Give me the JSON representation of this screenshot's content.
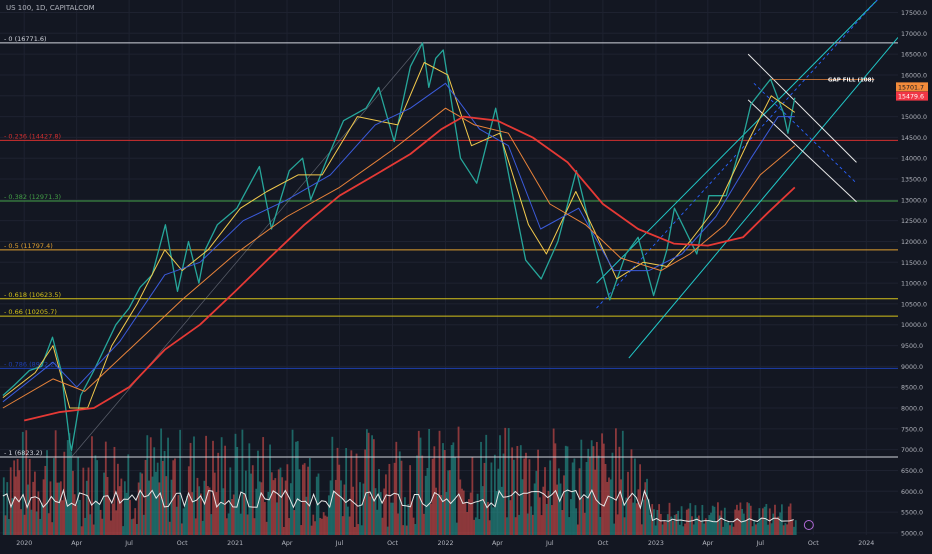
{
  "header": {
    "title": "US 100, 1D, CAPITALCOM"
  },
  "colors": {
    "background": "#131722",
    "price_up": "#26a69a",
    "price_down": "#ef5350",
    "ma_yellow": "#f2c94c",
    "ma_blue": "#3b5bdb",
    "ma_orange": "#e8833a",
    "ma_red": "#e53935",
    "channel": "#21c7c7",
    "trend_white": "#e6e6e6",
    "fib_white": "#d1d4dc",
    "fib_red": "#d32f2f",
    "fib_green": "#43a047",
    "fib_orange": "#e0a030",
    "fib_yellow": "#d4c21a",
    "fib_blue": "#1e3fb0",
    "price_tag": "#f28b3a",
    "price_tag_red": "#f23645",
    "volume_avg": "#e6e6e6"
  },
  "annotations": {
    "gap_fill_label": "GAP FILL (108)",
    "last_price_1": "15701.7",
    "last_price_2": "15479.6"
  },
  "chart_data": {
    "type": "line",
    "title": "US 100, 1D, CAPITALCOM",
    "x_axis": {
      "ticks": [
        "2020",
        "Apr",
        "Jul",
        "Oct",
        "2021",
        "Apr",
        "Jul",
        "Oct",
        "2022",
        "Apr",
        "Jul",
        "Oct",
        "2023",
        "Apr",
        "Jul",
        "Oct",
        "2024"
      ],
      "tick_dates": [
        "2020-01-01",
        "2020-04-01",
        "2020-07-01",
        "2020-10-01",
        "2021-01-01",
        "2021-04-01",
        "2021-07-01",
        "2021-10-01",
        "2022-01-01",
        "2022-04-01",
        "2022-07-01",
        "2022-10-01",
        "2023-01-01",
        "2023-04-01",
        "2023-07-01",
        "2023-10-01",
        "2024-01-01"
      ],
      "range": [
        "2019-11-20",
        "2024-02-25"
      ]
    },
    "y_axis": {
      "ticks": [
        17500,
        17000,
        16500,
        16000,
        15500,
        15000,
        14500,
        14000,
        13500,
        13000,
        12500,
        12000,
        11500,
        11000,
        10500,
        10000,
        9500,
        9000,
        8500,
        8000,
        7500,
        7000,
        6500,
        6000,
        5500,
        5000
      ],
      "tick_labels": [
        "17500.0",
        "17000.0",
        "16500.0",
        "16000.0",
        "15500.0",
        "15000.0",
        "14500.0",
        "14000.0",
        "13500.0",
        "13000.0",
        "12500.0",
        "12000.0",
        "11500.0",
        "11000.0",
        "10500.0",
        "10000.0",
        "9500.0",
        "9000.0",
        "8500.0",
        "8000.0",
        "7500.0",
        "7000.0",
        "6500.0",
        "6000.0",
        "5500.0",
        "5000.0"
      ],
      "range": [
        4950,
        17800
      ]
    },
    "fib_levels": [
      {
        "label": "0 (16771.6)",
        "value": 16771.6,
        "color": "#d1d4dc"
      },
      {
        "label": "0.236 (14427.8)",
        "value": 14427.8,
        "color": "#d32f2f"
      },
      {
        "label": "0.382 (12971.3)",
        "value": 12971.3,
        "color": "#43a047"
      },
      {
        "label": "0.5 (11797.4)",
        "value": 11797.4,
        "color": "#e0a030"
      },
      {
        "label": "0.618 (10623.5)",
        "value": 10623.5,
        "color": "#d4c21a"
      },
      {
        "label": "0.66 (10205.7)",
        "value": 10205.7,
        "color": "#d4c21a"
      },
      {
        "label": "0.786 (8952.2)",
        "value": 8952.2,
        "color": "#1e3fb0"
      },
      {
        "label": "1 (6823.2)",
        "value": 6823.2,
        "color": "#d1d4dc"
      }
    ],
    "series": [
      {
        "name": "price",
        "color": "#26a69a",
        "points": [
          [
            "2019-11-25",
            8300
          ],
          [
            "2019-12-15",
            8550
          ],
          [
            "2020-01-10",
            8900
          ],
          [
            "2020-01-31",
            9000
          ],
          [
            "2020-02-19",
            9700
          ],
          [
            "2020-03-05",
            8900
          ],
          [
            "2020-03-20",
            7200
          ],
          [
            "2020-03-23",
            6980
          ],
          [
            "2020-04-08",
            8300
          ],
          [
            "2020-05-01",
            8900
          ],
          [
            "2020-06-08",
            10000
          ],
          [
            "2020-07-01",
            10400
          ],
          [
            "2020-07-20",
            10900
          ],
          [
            "2020-08-10",
            11200
          ],
          [
            "2020-09-02",
            12400
          ],
          [
            "2020-09-23",
            10800
          ],
          [
            "2020-10-12",
            12000
          ],
          [
            "2020-10-30",
            11000
          ],
          [
            "2020-11-10",
            11800
          ],
          [
            "2020-12-01",
            12400
          ],
          [
            "2021-01-04",
            12800
          ],
          [
            "2021-02-12",
            13800
          ],
          [
            "2021-03-05",
            12300
          ],
          [
            "2021-04-05",
            13700
          ],
          [
            "2021-04-28",
            14000
          ],
          [
            "2021-05-12",
            13000
          ],
          [
            "2021-06-10",
            14000
          ],
          [
            "2021-07-08",
            14900
          ],
          [
            "2021-08-16",
            15200
          ],
          [
            "2021-09-07",
            15700
          ],
          [
            "2021-10-04",
            14400
          ],
          [
            "2021-11-01",
            16200
          ],
          [
            "2021-11-22",
            16770
          ],
          [
            "2021-12-03",
            15700
          ],
          [
            "2021-12-15",
            16400
          ],
          [
            "2021-12-28",
            16600
          ],
          [
            "2022-01-27",
            14000
          ],
          [
            "2022-02-24",
            13400
          ],
          [
            "2022-03-29",
            15200
          ],
          [
            "2022-04-25",
            13300
          ],
          [
            "2022-05-20",
            11550
          ],
          [
            "2022-06-16",
            11100
          ],
          [
            "2022-07-15",
            12000
          ],
          [
            "2022-08-16",
            13700
          ],
          [
            "2022-09-15",
            12000
          ],
          [
            "2022-10-13",
            10600
          ],
          [
            "2022-11-10",
            11700
          ],
          [
            "2022-12-01",
            12100
          ],
          [
            "2022-12-28",
            10700
          ],
          [
            "2023-01-20",
            11800
          ],
          [
            "2023-02-02",
            12800
          ],
          [
            "2023-03-13",
            11700
          ],
          [
            "2023-04-03",
            13100
          ],
          [
            "2023-05-03",
            13100
          ],
          [
            "2023-06-01",
            14500
          ],
          [
            "2023-06-15",
            15300
          ],
          [
            "2023-07-19",
            15900
          ],
          [
            "2023-08-10",
            15100
          ],
          [
            "2023-08-18",
            14600
          ],
          [
            "2023-08-30",
            15450
          ]
        ]
      },
      {
        "name": "ema_fast",
        "color": "#f2c94c",
        "points": [
          [
            "2019-11-25",
            8250
          ],
          [
            "2020-01-20",
            8850
          ],
          [
            "2020-02-20",
            9500
          ],
          [
            "2020-03-20",
            8000
          ],
          [
            "2020-04-20",
            8000
          ],
          [
            "2020-06-01",
            9500
          ],
          [
            "2020-07-15",
            10500
          ],
          [
            "2020-09-01",
            11800
          ],
          [
            "2020-10-01",
            11300
          ],
          [
            "2020-11-15",
            11800
          ],
          [
            "2021-01-10",
            12800
          ],
          [
            "2021-02-25",
            13200
          ],
          [
            "2021-04-20",
            13600
          ],
          [
            "2021-06-01",
            13600
          ],
          [
            "2021-08-01",
            15000
          ],
          [
            "2021-10-10",
            14800
          ],
          [
            "2021-11-25",
            16300
          ],
          [
            "2022-01-05",
            16000
          ],
          [
            "2022-02-15",
            14300
          ],
          [
            "2022-04-05",
            14600
          ],
          [
            "2022-05-25",
            12400
          ],
          [
            "2022-06-25",
            11700
          ],
          [
            "2022-08-15",
            13200
          ],
          [
            "2022-09-25",
            12000
          ],
          [
            "2022-10-25",
            11100
          ],
          [
            "2022-12-10",
            11500
          ],
          [
            "2023-01-20",
            11400
          ],
          [
            "2023-03-01",
            12000
          ],
          [
            "2023-04-20",
            12900
          ],
          [
            "2023-06-10",
            14400
          ],
          [
            "2023-07-20",
            15500
          ],
          [
            "2023-08-30",
            15100
          ]
        ]
      },
      {
        "name": "ema_mid",
        "color": "#3b5bdb",
        "points": [
          [
            "2019-11-25",
            8150
          ],
          [
            "2020-02-20",
            9100
          ],
          [
            "2020-04-01",
            8500
          ],
          [
            "2020-06-15",
            9600
          ],
          [
            "2020-09-01",
            11200
          ],
          [
            "2020-11-01",
            11500
          ],
          [
            "2021-01-15",
            12500
          ],
          [
            "2021-04-01",
            13000
          ],
          [
            "2021-06-15",
            13600
          ],
          [
            "2021-09-01",
            14800
          ],
          [
            "2021-11-01",
            15200
          ],
          [
            "2022-01-01",
            15800
          ],
          [
            "2022-03-01",
            14700
          ],
          [
            "2022-04-20",
            14300
          ],
          [
            "2022-06-15",
            12300
          ],
          [
            "2022-08-20",
            12800
          ],
          [
            "2022-10-20",
            11300
          ],
          [
            "2022-12-20",
            11300
          ],
          [
            "2023-02-15",
            11700
          ],
          [
            "2023-04-15",
            12600
          ],
          [
            "2023-06-15",
            14000
          ],
          [
            "2023-08-01",
            15000
          ],
          [
            "2023-08-30",
            15000
          ]
        ]
      },
      {
        "name": "ema_slow",
        "color": "#e8833a",
        "points": [
          [
            "2019-11-25",
            8000
          ],
          [
            "2020-02-20",
            8700
          ],
          [
            "2020-04-15",
            8400
          ],
          [
            "2020-07-01",
            9400
          ],
          [
            "2020-10-01",
            10600
          ],
          [
            "2021-01-01",
            11700
          ],
          [
            "2021-04-01",
            12600
          ],
          [
            "2021-07-01",
            13300
          ],
          [
            "2021-10-01",
            14200
          ],
          [
            "2022-01-01",
            15200
          ],
          [
            "2022-02-20",
            14800
          ],
          [
            "2022-04-20",
            14600
          ],
          [
            "2022-07-01",
            12900
          ],
          [
            "2022-09-01",
            12400
          ],
          [
            "2022-11-01",
            11600
          ],
          [
            "2023-01-10",
            11300
          ],
          [
            "2023-03-01",
            11700
          ],
          [
            "2023-05-01",
            12400
          ],
          [
            "2023-07-01",
            13600
          ],
          [
            "2023-08-30",
            14300
          ]
        ]
      },
      {
        "name": "sma_200",
        "color": "#e53935",
        "points": [
          [
            "2020-01-01",
            7700
          ],
          [
            "2020-03-01",
            7900
          ],
          [
            "2020-05-01",
            8000
          ],
          [
            "2020-07-01",
            8500
          ],
          [
            "2020-09-01",
            9400
          ],
          [
            "2020-11-01",
            10000
          ],
          [
            "2021-01-01",
            10800
          ],
          [
            "2021-03-01",
            11600
          ],
          [
            "2021-05-01",
            12400
          ],
          [
            "2021-07-01",
            13100
          ],
          [
            "2021-09-01",
            13600
          ],
          [
            "2021-11-01",
            14100
          ],
          [
            "2021-12-25",
            14700
          ],
          [
            "2022-02-01",
            15000
          ],
          [
            "2022-04-01",
            14900
          ],
          [
            "2022-06-01",
            14500
          ],
          [
            "2022-08-01",
            13900
          ],
          [
            "2022-10-01",
            12900
          ],
          [
            "2022-12-01",
            12300
          ],
          [
            "2023-02-01",
            11950
          ],
          [
            "2023-04-01",
            11900
          ],
          [
            "2023-06-01",
            12100
          ],
          [
            "2023-07-15",
            12700
          ],
          [
            "2023-08-30",
            13300
          ]
        ]
      }
    ]
  }
}
